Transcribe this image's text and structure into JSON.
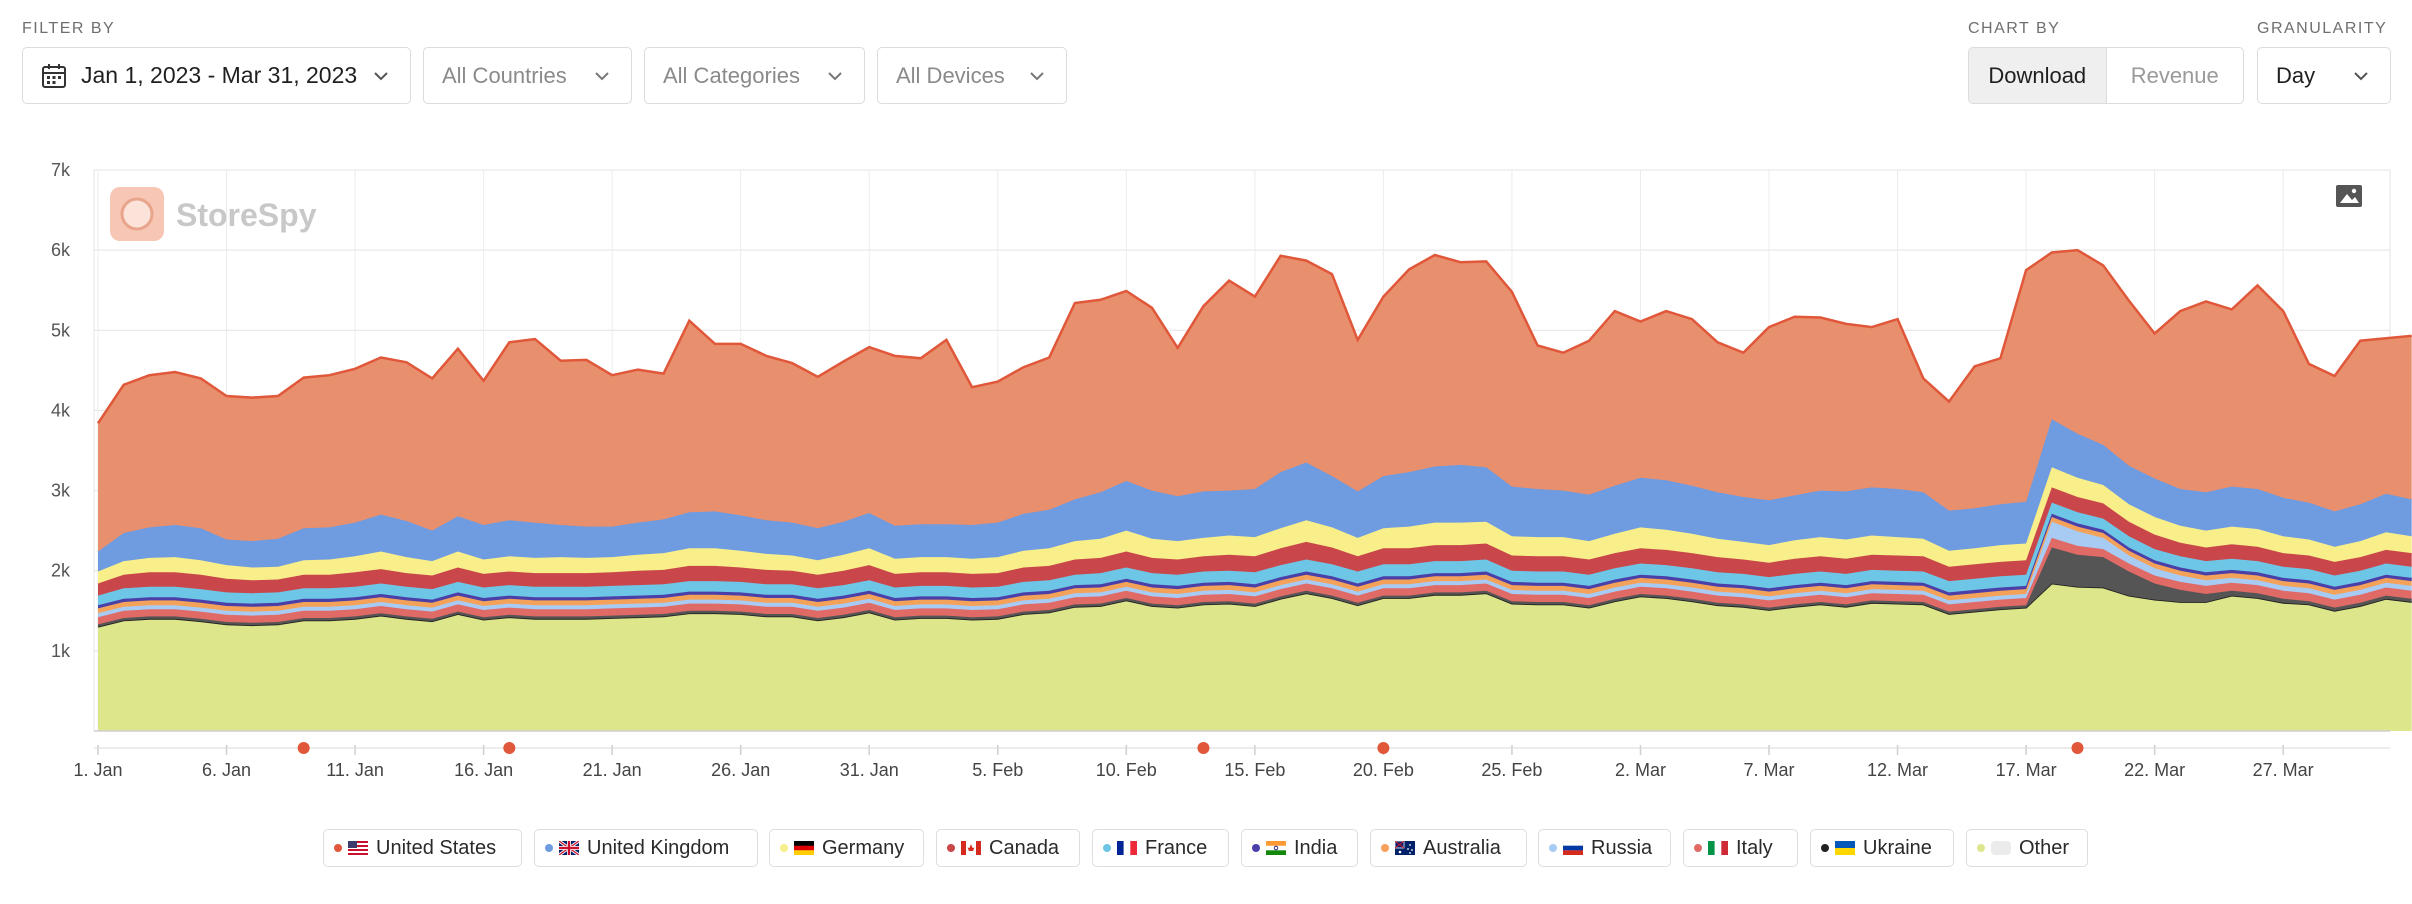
{
  "filters": {
    "label": "FILTER BY",
    "date_range": "Jan 1, 2023 - Mar 31, 2023",
    "countries": "All Countries",
    "categories": "All Categories",
    "devices": "All Devices"
  },
  "chart_by": {
    "label": "CHART BY",
    "options": [
      "Download",
      "Revenue"
    ],
    "selected": "Download"
  },
  "granularity": {
    "label": "GRANULARITY",
    "value": "Day"
  },
  "watermark": "StoreSpy",
  "colors": {
    "United States": "#e8906e",
    "United Kingdom": "#6f9be0",
    "Germany": "#f8ef8a",
    "Canada": "#c9464a",
    "France": "#6ec6e6",
    "India": "#4b3fa8",
    "Australia": "#f4a25a",
    "Russia": "#a8cbf4",
    "Italy": "#e06a66",
    "Ukraine": "#555555",
    "Other": "#dde68a",
    "us_line": "#e0573a",
    "marker": "#e0573a"
  },
  "chart_data": {
    "type": "area",
    "stacked": true,
    "title": "",
    "xlabel": "",
    "ylabel": "",
    "ylim": [
      0,
      7000
    ],
    "yticks": [
      1000,
      2000,
      3000,
      4000,
      5000,
      6000,
      7000
    ],
    "ytick_labels": [
      "1k",
      "2k",
      "3k",
      "4k",
      "5k",
      "6k",
      "7k"
    ],
    "xtick_labels": [
      "1. Jan",
      "6. Jan",
      "11. Jan",
      "16. Jan",
      "21. Jan",
      "26. Jan",
      "31. Jan",
      "5. Feb",
      "10. Feb",
      "15. Feb",
      "20. Feb",
      "25. Feb",
      "2. Mar",
      "7. Mar",
      "12. Mar",
      "17. Mar",
      "22. Mar",
      "27. Mar"
    ],
    "x_start": "2023-01-01",
    "x_end": "2023-03-31",
    "grid": true,
    "legend_position": "bottom",
    "event_markers": [
      "2023-01-09",
      "2023-01-17",
      "2023-02-13",
      "2023-02-20",
      "2023-03-19"
    ],
    "series": [
      {
        "name": "Other",
        "values": [
          1300,
          1380,
          1400,
          1400,
          1370,
          1330,
          1320,
          1330,
          1380,
          1380,
          1400,
          1440,
          1400,
          1370,
          1460,
          1390,
          1420,
          1400,
          1400,
          1400,
          1410,
          1420,
          1430,
          1470,
          1470,
          1460,
          1430,
          1430,
          1380,
          1420,
          1480,
          1390,
          1410,
          1410,
          1390,
          1400,
          1460,
          1480,
          1550,
          1560,
          1630,
          1560,
          1540,
          1580,
          1590,
          1560,
          1650,
          1720,
          1660,
          1570,
          1660,
          1660,
          1700,
          1700,
          1720,
          1590,
          1580,
          1580,
          1540,
          1620,
          1680,
          1660,
          1620,
          1570,
          1550,
          1510,
          1550,
          1580,
          1550,
          1600,
          1590,
          1580,
          1460,
          1490,
          1520,
          1540,
          1840,
          1800,
          1790,
          1690,
          1640,
          1610,
          1610,
          1690,
          1660,
          1600,
          1580,
          1500,
          1560,
          1650,
          1610
        ]
      },
      {
        "name": "Ukraine",
        "values": [
          30,
          30,
          30,
          30,
          30,
          30,
          30,
          30,
          30,
          30,
          30,
          30,
          30,
          30,
          30,
          30,
          30,
          30,
          30,
          30,
          30,
          30,
          30,
          30,
          30,
          30,
          30,
          30,
          30,
          30,
          30,
          30,
          30,
          30,
          30,
          30,
          30,
          30,
          30,
          30,
          30,
          30,
          30,
          30,
          30,
          30,
          30,
          30,
          30,
          30,
          30,
          30,
          30,
          30,
          30,
          30,
          30,
          30,
          30,
          30,
          30,
          30,
          30,
          30,
          30,
          30,
          30,
          30,
          30,
          30,
          30,
          30,
          30,
          30,
          30,
          30,
          450,
          400,
          380,
          300,
          200,
          150,
          100,
          60,
          60,
          50,
          40,
          40,
          40,
          40,
          40
        ]
      },
      {
        "name": "Italy",
        "values": [
          90,
          90,
          90,
          90,
          90,
          90,
          90,
          90,
          90,
          90,
          90,
          90,
          90,
          90,
          90,
          90,
          90,
          90,
          90,
          90,
          90,
          90,
          90,
          90,
          90,
          90,
          90,
          90,
          90,
          90,
          90,
          90,
          90,
          90,
          90,
          90,
          90,
          90,
          90,
          90,
          90,
          90,
          90,
          90,
          90,
          90,
          90,
          90,
          90,
          90,
          90,
          90,
          90,
          90,
          90,
          90,
          90,
          90,
          90,
          90,
          90,
          90,
          90,
          90,
          90,
          90,
          90,
          90,
          90,
          90,
          90,
          90,
          90,
          90,
          90,
          90,
          120,
          110,
          100,
          100,
          100,
          100,
          100,
          100,
          100,
          100,
          100,
          100,
          100,
          100,
          100
        ]
      },
      {
        "name": "Russia",
        "values": [
          50,
          50,
          50,
          50,
          50,
          50,
          50,
          50,
          50,
          50,
          50,
          50,
          50,
          50,
          50,
          50,
          50,
          50,
          50,
          50,
          50,
          50,
          50,
          50,
          50,
          50,
          50,
          50,
          50,
          50,
          50,
          50,
          50,
          50,
          50,
          50,
          50,
          50,
          50,
          50,
          50,
          50,
          50,
          50,
          50,
          50,
          50,
          50,
          50,
          50,
          50,
          50,
          50,
          50,
          50,
          50,
          50,
          50,
          50,
          50,
          50,
          50,
          50,
          50,
          50,
          50,
          50,
          50,
          50,
          50,
          50,
          50,
          50,
          50,
          50,
          50,
          200,
          180,
          140,
          100,
          90,
          80,
          70,
          60,
          60,
          60,
          60,
          60,
          60,
          60,
          60
        ]
      },
      {
        "name": "Australia",
        "values": [
          60,
          60,
          60,
          60,
          60,
          60,
          60,
          60,
          60,
          60,
          60,
          60,
          60,
          60,
          60,
          60,
          60,
          60,
          60,
          60,
          60,
          60,
          60,
          60,
          60,
          60,
          60,
          60,
          60,
          60,
          60,
          60,
          60,
          60,
          60,
          60,
          60,
          60,
          60,
          60,
          60,
          60,
          60,
          60,
          60,
          60,
          60,
          60,
          60,
          60,
          60,
          60,
          60,
          60,
          60,
          60,
          60,
          60,
          60,
          60,
          60,
          60,
          60,
          60,
          60,
          60,
          60,
          60,
          60,
          60,
          60,
          60,
          60,
          60,
          60,
          60,
          60,
          60,
          60,
          60,
          60,
          60,
          60,
          60,
          60,
          60,
          60,
          60,
          60,
          60,
          60
        ]
      },
      {
        "name": "India",
        "values": [
          40,
          40,
          40,
          40,
          40,
          40,
          40,
          40,
          40,
          40,
          40,
          40,
          40,
          40,
          40,
          40,
          40,
          40,
          40,
          40,
          40,
          40,
          40,
          40,
          40,
          40,
          40,
          40,
          40,
          40,
          40,
          40,
          40,
          40,
          40,
          40,
          40,
          40,
          40,
          40,
          40,
          40,
          40,
          40,
          40,
          40,
          40,
          40,
          40,
          40,
          40,
          40,
          40,
          40,
          40,
          40,
          40,
          40,
          40,
          40,
          40,
          40,
          40,
          40,
          40,
          40,
          40,
          40,
          40,
          40,
          40,
          40,
          40,
          40,
          40,
          40,
          40,
          40,
          40,
          40,
          40,
          40,
          40,
          40,
          40,
          40,
          40,
          40,
          40,
          40,
          40
        ]
      },
      {
        "name": "France",
        "values": [
          120,
          130,
          130,
          130,
          130,
          130,
          130,
          130,
          130,
          130,
          130,
          130,
          130,
          130,
          130,
          130,
          130,
          130,
          130,
          130,
          130,
          130,
          130,
          130,
          130,
          130,
          130,
          130,
          130,
          130,
          130,
          130,
          130,
          130,
          130,
          130,
          130,
          130,
          130,
          140,
          140,
          140,
          140,
          140,
          140,
          150,
          150,
          150,
          150,
          150,
          150,
          150,
          150,
          150,
          150,
          140,
          140,
          140,
          140,
          140,
          140,
          140,
          140,
          140,
          140,
          140,
          140,
          140,
          140,
          140,
          140,
          140,
          140,
          140,
          140,
          140,
          140,
          140,
          140,
          140,
          140,
          140,
          140,
          140,
          140,
          140,
          140,
          140,
          140,
          140,
          140
        ]
      },
      {
        "name": "Canada",
        "values": [
          150,
          170,
          180,
          180,
          180,
          170,
          160,
          160,
          170,
          170,
          180,
          180,
          170,
          170,
          180,
          170,
          170,
          170,
          170,
          170,
          170,
          180,
          180,
          190,
          190,
          180,
          180,
          170,
          170,
          180,
          190,
          170,
          170,
          170,
          170,
          170,
          180,
          180,
          190,
          190,
          200,
          190,
          190,
          190,
          200,
          200,
          210,
          220,
          210,
          190,
          200,
          200,
          200,
          200,
          200,
          190,
          190,
          190,
          190,
          190,
          190,
          190,
          190,
          190,
          180,
          180,
          190,
          190,
          190,
          190,
          190,
          190,
          180,
          180,
          180,
          180,
          190,
          190,
          190,
          180,
          180,
          170,
          170,
          180,
          180,
          170,
          170,
          170,
          170,
          170,
          170
        ]
      },
      {
        "name": "Germany",
        "values": [
          150,
          170,
          180,
          190,
          180,
          170,
          160,
          160,
          180,
          190,
          200,
          220,
          200,
          180,
          200,
          180,
          190,
          190,
          200,
          190,
          190,
          200,
          210,
          220,
          220,
          210,
          200,
          190,
          180,
          200,
          210,
          190,
          190,
          190,
          190,
          200,
          210,
          220,
          230,
          240,
          260,
          240,
          230,
          230,
          240,
          240,
          250,
          270,
          250,
          230,
          250,
          270,
          280,
          280,
          270,
          240,
          240,
          240,
          230,
          240,
          260,
          250,
          240,
          230,
          220,
          220,
          230,
          240,
          240,
          240,
          230,
          220,
          200,
          200,
          210,
          210,
          250,
          240,
          230,
          220,
          220,
          210,
          210,
          220,
          220,
          210,
          200,
          190,
          200,
          220,
          210
        ]
      },
      {
        "name": "United Kingdom",
        "values": [
          250,
          350,
          380,
          400,
          400,
          320,
          330,
          350,
          400,
          400,
          420,
          460,
          450,
          380,
          440,
          430,
          450,
          440,
          400,
          390,
          380,
          400,
          420,
          450,
          460,
          440,
          420,
          410,
          400,
          410,
          440,
          410,
          410,
          410,
          420,
          430,
          460,
          480,
          520,
          580,
          620,
          600,
          560,
          580,
          560,
          600,
          700,
          720,
          640,
          580,
          650,
          680,
          700,
          720,
          680,
          620,
          600,
          580,
          580,
          600,
          620,
          620,
          600,
          580,
          560,
          560,
          560,
          580,
          600,
          600,
          600,
          580,
          500,
          500,
          510,
          520,
          600,
          550,
          500,
          480,
          480,
          460,
          480,
          500,
          500,
          480,
          460,
          440,
          460,
          480,
          460
        ]
      },
      {
        "name": "United States",
        "values": [
          1600,
          1850,
          1900,
          1910,
          1870,
          1790,
          1790,
          1780,
          1880,
          1900,
          1920,
          1960,
          1980,
          1900,
          2090,
          1800,
          2220,
          2290,
          2050,
          2080,
          1890,
          1910,
          1820,
          2390,
          2090,
          2140,
          2050,
          1990,
          1890,
          2000,
          2070,
          2120,
          2070,
          2300,
          1720,
          1760,
          1830,
          1900,
          2450,
          2400,
          2370,
          2280,
          1850,
          2310,
          2620,
          2400,
          2700,
          2520,
          2520,
          1890,
          2240,
          2530,
          2640,
          2530,
          2570,
          2430,
          1790,
          1720,
          1920,
          2180,
          1950,
          2110,
          2080,
          1870,
          1800,
          2160,
          2230,
          2160,
          2090,
          2000,
          2120,
          1420,
          1360,
          1770,
          1820,
          2890,
          2080,
          2290,
          2240,
          2060,
          1810,
          2220,
          2380,
          2210,
          2540,
          2330,
          1730,
          1690,
          2040,
          1940,
          2040
        ]
      }
    ]
  },
  "legend": [
    {
      "name": "United States",
      "flag": "us"
    },
    {
      "name": "United Kingdom",
      "flag": "gb"
    },
    {
      "name": "Germany",
      "flag": "de"
    },
    {
      "name": "Canada",
      "flag": "ca"
    },
    {
      "name": "France",
      "flag": "fr"
    },
    {
      "name": "India",
      "flag": "in"
    },
    {
      "name": "Australia",
      "flag": "au"
    },
    {
      "name": "Russia",
      "flag": "ru"
    },
    {
      "name": "Italy",
      "flag": "it"
    },
    {
      "name": "Ukraine",
      "flag": "ua"
    },
    {
      "name": "Other",
      "flag": "none"
    }
  ]
}
